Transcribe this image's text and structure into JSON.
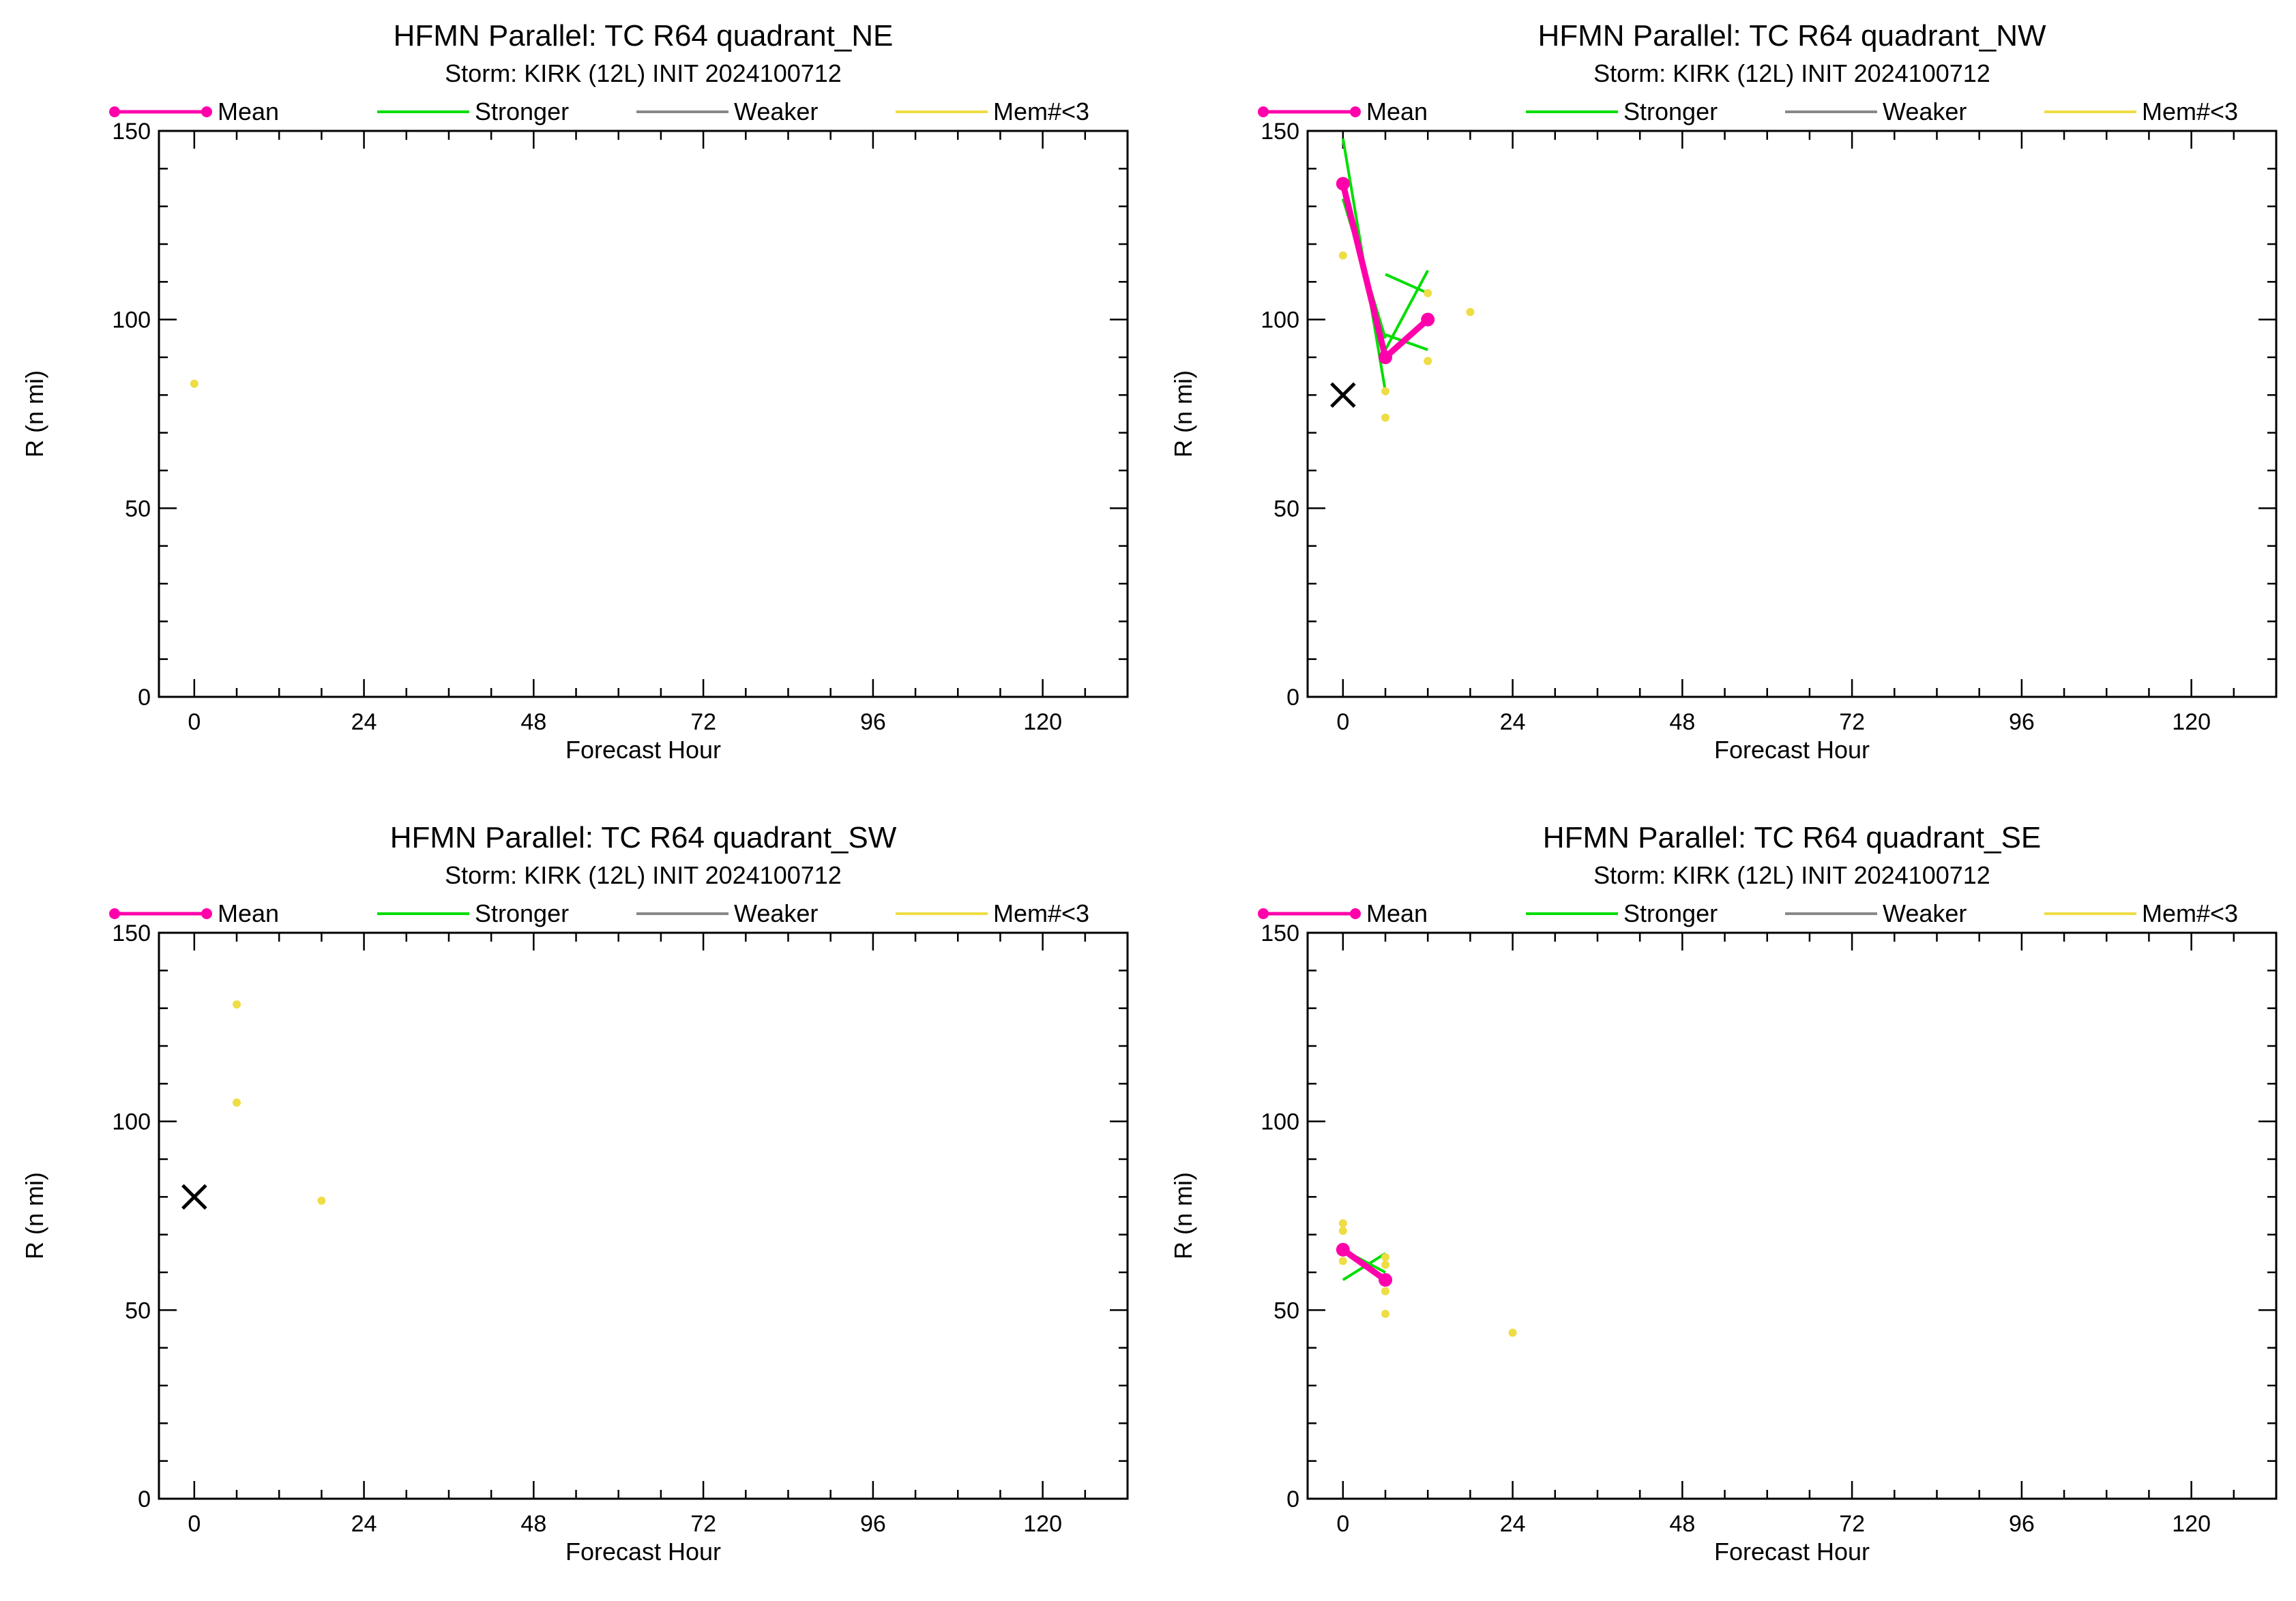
{
  "colors": {
    "mean": "#ff00aa",
    "stronger": "#00dd00",
    "weaker": "#888888",
    "mem_lt3": "#eedd44",
    "obs_marker": "#000000"
  },
  "chart_data": [
    {
      "type": "line",
      "title": "HFMN Parallel: TC  R64 quadrant_NE",
      "subtitle": "Storm: KIRK (12L) INIT 2024100712",
      "xlabel": "Forecast Hour",
      "ylabel": "R (n mi)",
      "xlim": [
        -5,
        132
      ],
      "ylim": [
        0,
        150
      ],
      "xticks": [
        "0",
        "24",
        "48",
        "72",
        "96",
        "120"
      ],
      "yticks": [
        "0",
        "50",
        "100",
        "150"
      ],
      "legend": [
        "Mean",
        "Stronger",
        "Weaker",
        "Mem#<3"
      ],
      "legend_position": "top",
      "mean": [],
      "stronger": [],
      "weaker": [],
      "mem_lt3_points": [
        {
          "x": 0,
          "y": 83
        }
      ],
      "obs_markers": []
    },
    {
      "type": "line",
      "title": "HFMN Parallel: TC  R64 quadrant_NW",
      "subtitle": "Storm: KIRK (12L) INIT 2024100712",
      "xlabel": "Forecast Hour",
      "ylabel": "R (n mi)",
      "xlim": [
        -5,
        132
      ],
      "ylim": [
        0,
        150
      ],
      "xticks": [
        "0",
        "24",
        "48",
        "72",
        "96",
        "120"
      ],
      "yticks": [
        "0",
        "50",
        "100",
        "150"
      ],
      "legend": [
        "Mean",
        "Stronger",
        "Weaker",
        "Mem#<3"
      ],
      "legend_position": "top",
      "mean": [
        {
          "x": 0,
          "y": 136
        },
        {
          "x": 6,
          "y": 90
        },
        {
          "x": 12,
          "y": 100
        }
      ],
      "stronger": [
        [
          {
            "x": 0,
            "y": 148
          },
          {
            "x": 6,
            "y": 81
          }
        ],
        [
          {
            "x": 0,
            "y": 132
          },
          {
            "x": 6,
            "y": 95
          }
        ],
        [
          {
            "x": 6,
            "y": 112
          },
          {
            "x": 12,
            "y": 107
          }
        ],
        [
          {
            "x": 6,
            "y": 92
          },
          {
            "x": 12,
            "y": 113
          }
        ],
        [
          {
            "x": 6,
            "y": 96
          },
          {
            "x": 12,
            "y": 92
          }
        ]
      ],
      "weaker": [],
      "mem_lt3_points": [
        {
          "x": 0,
          "y": 117
        },
        {
          "x": 6,
          "y": 74
        },
        {
          "x": 6,
          "y": 81
        },
        {
          "x": 12,
          "y": 89
        },
        {
          "x": 12,
          "y": 107
        },
        {
          "x": 18,
          "y": 102
        }
      ],
      "obs_markers": [
        {
          "x": 0,
          "y": 80
        }
      ]
    },
    {
      "type": "line",
      "title": "HFMN Parallel: TC  R64 quadrant_SW",
      "subtitle": "Storm: KIRK (12L) INIT 2024100712",
      "xlabel": "Forecast Hour",
      "ylabel": "R (n mi)",
      "xlim": [
        -5,
        132
      ],
      "ylim": [
        0,
        150
      ],
      "xticks": [
        "0",
        "24",
        "48",
        "72",
        "96",
        "120"
      ],
      "yticks": [
        "0",
        "50",
        "100",
        "150"
      ],
      "legend": [
        "Mean",
        "Stronger",
        "Weaker",
        "Mem#<3"
      ],
      "legend_position": "top",
      "mean": [],
      "stronger": [],
      "weaker": [],
      "mem_lt3_points": [
        {
          "x": 6,
          "y": 131
        },
        {
          "x": 6,
          "y": 105
        },
        {
          "x": 18,
          "y": 79
        }
      ],
      "obs_markers": [
        {
          "x": 0,
          "y": 80
        }
      ]
    },
    {
      "type": "line",
      "title": "HFMN Parallel: TC  R64 quadrant_SE",
      "subtitle": "Storm: KIRK (12L) INIT 2024100712",
      "xlabel": "Forecast Hour",
      "ylabel": "R (n mi)",
      "xlim": [
        -5,
        132
      ],
      "ylim": [
        0,
        150
      ],
      "xticks": [
        "0",
        "24",
        "48",
        "72",
        "96",
        "120"
      ],
      "yticks": [
        "0",
        "50",
        "100",
        "150"
      ],
      "legend": [
        "Mean",
        "Stronger",
        "Weaker",
        "Mem#<3"
      ],
      "legend_position": "top",
      "mean": [
        {
          "x": 0,
          "y": 66
        },
        {
          "x": 6,
          "y": 58
        }
      ],
      "stronger": [
        [
          {
            "x": 0,
            "y": 58
          },
          {
            "x": 6,
            "y": 65
          }
        ],
        [
          {
            "x": 0,
            "y": 66
          },
          {
            "x": 6,
            "y": 60
          }
        ]
      ],
      "weaker": [],
      "mem_lt3_points": [
        {
          "x": 0,
          "y": 73
        },
        {
          "x": 0,
          "y": 71
        },
        {
          "x": 0,
          "y": 63
        },
        {
          "x": 6,
          "y": 64
        },
        {
          "x": 6,
          "y": 62
        },
        {
          "x": 6,
          "y": 55
        },
        {
          "x": 6,
          "y": 49
        },
        {
          "x": 24,
          "y": 44
        }
      ],
      "obs_markers": []
    }
  ]
}
